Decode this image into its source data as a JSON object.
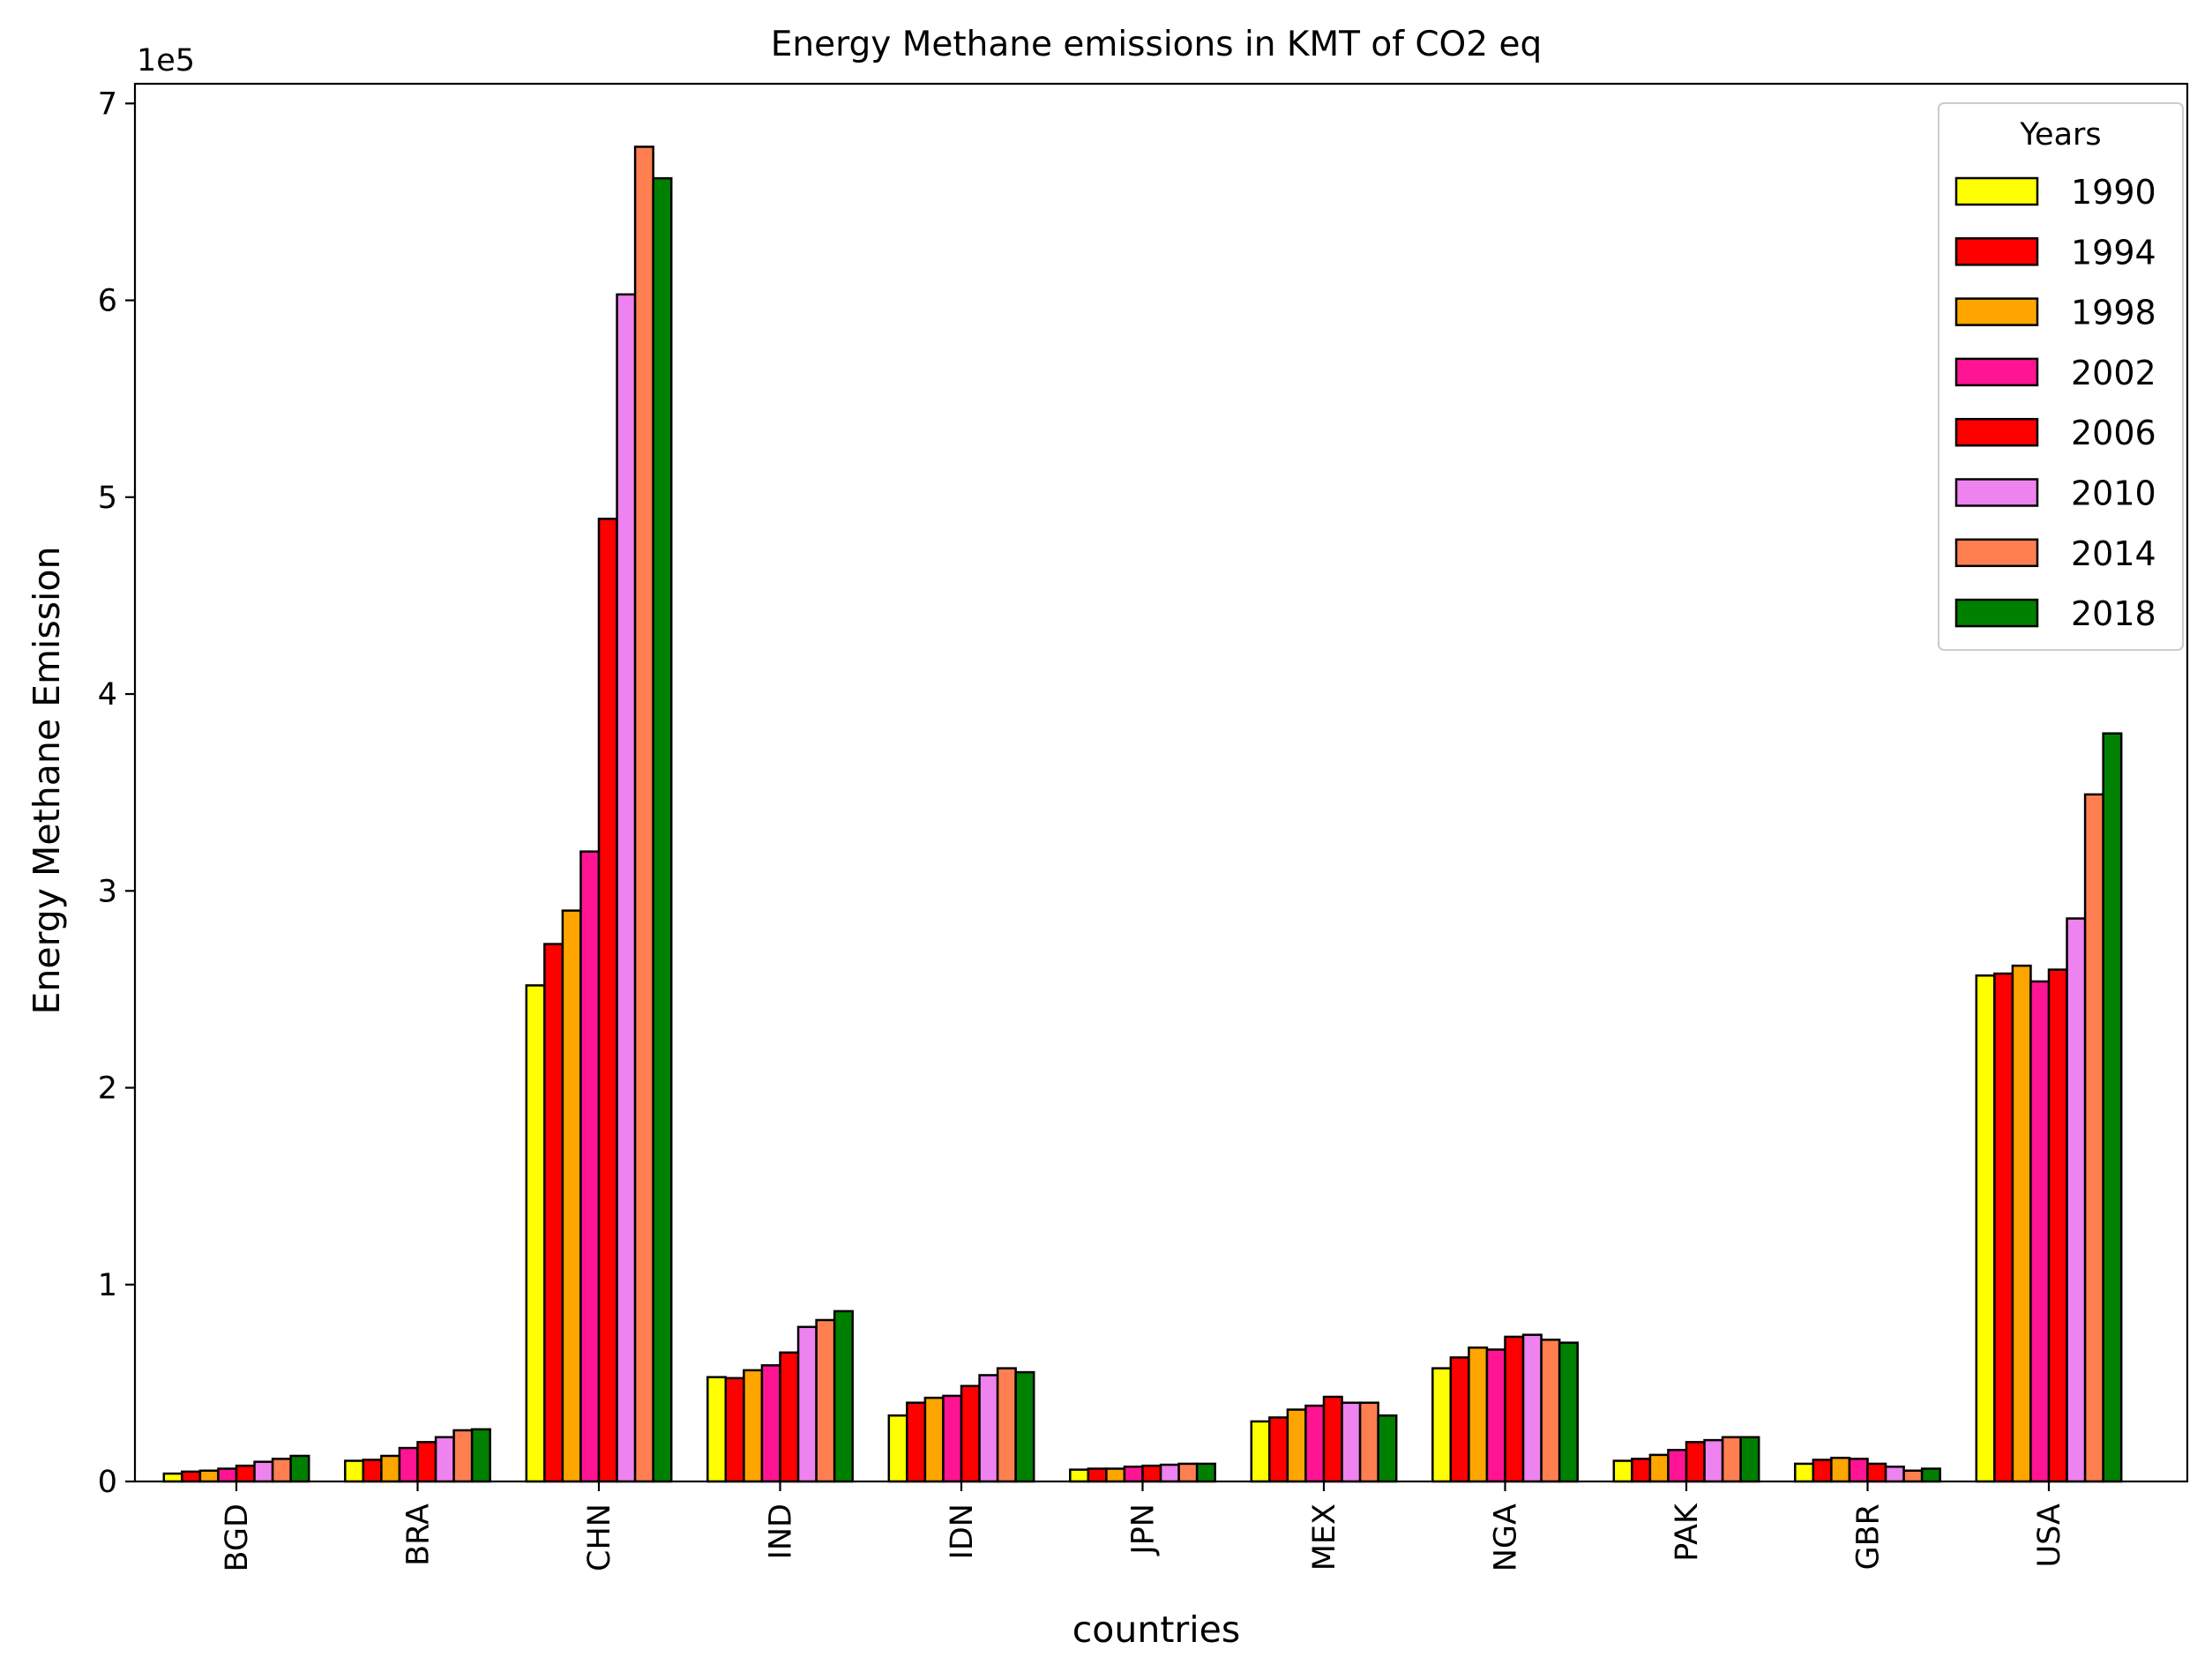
{
  "chart_data": {
    "type": "bar",
    "title": "Energy Methane emissions in KMT of CO2 eq",
    "xlabel": "countries",
    "ylabel": "Energy Methane Emission",
    "offset_label": "1e5",
    "ylim": [
      0,
      710000
    ],
    "yticks": [
      0,
      100000,
      200000,
      300000,
      400000,
      500000,
      600000,
      700000
    ],
    "ytick_labels": [
      "0",
      "1",
      "2",
      "3",
      "4",
      "5",
      "6",
      "7"
    ],
    "grid": false,
    "legend": {
      "title": "Years",
      "position": "top-right"
    },
    "categories": [
      "BGD",
      "BRA",
      "CHN",
      "IND",
      "IDN",
      "JPN",
      "MEX",
      "NGA",
      "PAK",
      "GBR",
      "USA"
    ],
    "series": [
      {
        "name": "1990",
        "color": "#ffff00",
        "values": [
          4000,
          10500,
          252000,
          53000,
          33500,
          6000,
          30500,
          57500,
          10500,
          9000,
          257000
        ]
      },
      {
        "name": "1994",
        "color": "#ff0000",
        "values": [
          5000,
          11000,
          273000,
          52500,
          40000,
          6500,
          32500,
          63000,
          11500,
          11000,
          258000
        ]
      },
      {
        "name": "1998",
        "color": "#ffa500",
        "values": [
          5500,
          13000,
          290000,
          56500,
          42500,
          6500,
          36500,
          68000,
          13500,
          12000,
          262000
        ]
      },
      {
        "name": "2002",
        "color": "#ff1493",
        "values": [
          6500,
          17000,
          320000,
          59000,
          43500,
          7500,
          38500,
          67000,
          16000,
          11500,
          254000
        ]
      },
      {
        "name": "2006",
        "color": "#ff0000",
        "values": [
          8000,
          20000,
          489000,
          65500,
          48500,
          8000,
          43000,
          73500,
          20000,
          9000,
          260000
        ]
      },
      {
        "name": "2010",
        "color": "#ee82ee",
        "values": [
          10000,
          22500,
          603000,
          78500,
          54000,
          8500,
          40000,
          74500,
          21000,
          7500,
          286000
        ]
      },
      {
        "name": "2014",
        "color": "#ff7f50",
        "values": [
          11500,
          26000,
          678000,
          82000,
          57500,
          9000,
          40000,
          72000,
          22500,
          5500,
          349000
        ]
      },
      {
        "name": "2018",
        "color": "#008000",
        "values": [
          13000,
          26500,
          662000,
          86500,
          55500,
          9000,
          33500,
          70500,
          22500,
          6500,
          380000
        ]
      }
    ]
  }
}
